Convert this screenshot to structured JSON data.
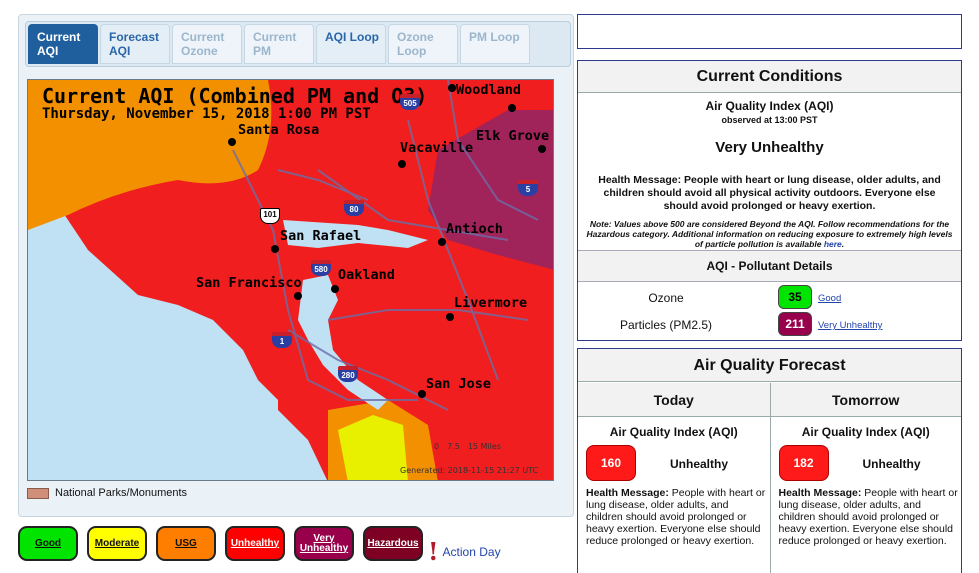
{
  "tabs": [
    {
      "label": "Current AQI",
      "state": "active"
    },
    {
      "label": "Forecast AQI",
      "state": "enabled"
    },
    {
      "label": "Current Ozone",
      "state": "disabled"
    },
    {
      "label": "Current PM",
      "state": "disabled"
    },
    {
      "label": "AQI Loop",
      "state": "enabled"
    },
    {
      "label": "Ozone Loop",
      "state": "disabled"
    },
    {
      "label": "PM Loop",
      "state": "disabled"
    }
  ],
  "map": {
    "title": "Current AQI (Combined PM and O3)",
    "subtitle": "Thursday, November 15, 2018 1:00 PM PST",
    "cities": [
      "Woodland",
      "Santa Rosa",
      "Vacaville",
      "Elk Grove",
      "San Rafael",
      "Antioch",
      "Oakland",
      "San Francisco",
      "Livermore",
      "San Jose"
    ],
    "highways": [
      "505",
      "5",
      "101",
      "80",
      "580",
      "1",
      "280"
    ],
    "scale_labels": [
      "0",
      "7.5",
      "15 Miles"
    ],
    "generated": "Generated: 2018-11-15 21:27 UTC",
    "legend_parks": "National Parks/Monuments"
  },
  "aqi_categories": [
    {
      "label": "Good",
      "color": "#00e400"
    },
    {
      "label": "Moderate",
      "color": "#ffff00"
    },
    {
      "label": "USG",
      "color": "#ff7e00"
    },
    {
      "label": "Unhealthy",
      "color": "#ff0000"
    },
    {
      "label": "Very Unhealthy",
      "color": "#99004c"
    },
    {
      "label": "Hazardous",
      "color": "#7e0023"
    }
  ],
  "action_day": "Action Day",
  "current_conditions": {
    "title": "Current Conditions",
    "aqi_label": "Air Quality Index (AQI)",
    "observed": "observed at 13:00 PST",
    "status": "Very Unhealthy",
    "health_message": "Health Message: People with heart or lung disease, older adults, and children should avoid all physical activity outdoors. Everyone else should avoid prolonged or heavy exertion.",
    "note": "Note: Values above 500 are considered Beyond the AQI. Follow recommendations for the Hazardous category. Additional information on reducing exposure to extremely high levels of particle pollution is available",
    "note_link": "here",
    "pollutant_header": "AQI - Pollutant Details",
    "pollutants": [
      {
        "name": "Ozone",
        "value": "35",
        "category": "Good",
        "color": "#00e400",
        "text_color": "#000000"
      },
      {
        "name": "Particles (PM2.5)",
        "value": "211",
        "category": "Very Unhealthy",
        "color": "#99004c",
        "text_color": "#ffffff"
      }
    ]
  },
  "forecast": {
    "title": "Air Quality Forecast",
    "days": [
      {
        "day": "Today",
        "aqi_label": "Air Quality Index (AQI)",
        "value": "160",
        "category": "Unhealthy",
        "health_label": "Health Message:",
        "health": "People with heart or lung disease, older adults, and children should avoid prolonged or heavy exertion. Everyone else should reduce prolonged or heavy exertion."
      },
      {
        "day": "Tomorrow",
        "aqi_label": "Air Quality Index (AQI)",
        "value": "182",
        "category": "Unhealthy",
        "health_label": "Health Message:",
        "health": "People with heart or lung disease, older adults, and children should avoid prolonged or heavy exertion. Everyone else should reduce prolonged or heavy exertion."
      }
    ]
  }
}
